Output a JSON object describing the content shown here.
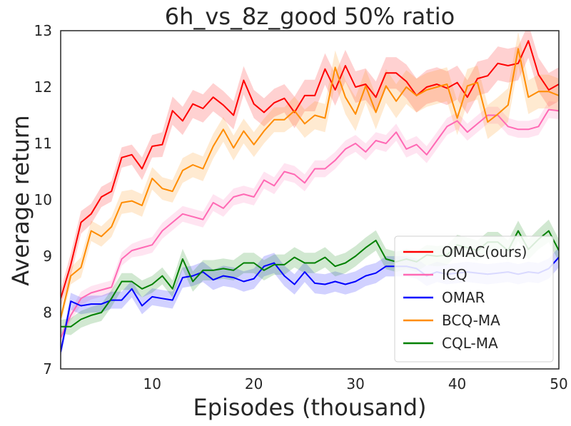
{
  "chart_data": {
    "type": "line",
    "title": "6h_vs_8z_good   50% ratio",
    "xlabel": "Episodes (thousand)",
    "ylabel": "Average return",
    "xlim": [
      1,
      50
    ],
    "ylim": [
      7,
      13
    ],
    "xticks": [
      10,
      20,
      30,
      40,
      50
    ],
    "yticks": [
      7,
      8,
      9,
      10,
      11,
      12,
      13
    ],
    "grid": false,
    "legend_position": "lower-right",
    "series": [
      {
        "name": "OMAC(ours)",
        "color": "#ff0000",
        "values": [
          8.25,
          8.85,
          9.6,
          9.75,
          10.05,
          10.15,
          10.75,
          10.8,
          10.55,
          10.95,
          10.98,
          11.58,
          11.4,
          11.7,
          11.62,
          11.82,
          11.68,
          11.5,
          12.12,
          11.7,
          11.55,
          11.72,
          11.8,
          11.55,
          11.85,
          11.85,
          12.32,
          11.95,
          12.38,
          12.0,
          12.05,
          11.82,
          12.25,
          12.25,
          12.1,
          11.85,
          12.0,
          12.05,
          11.98,
          12.08,
          11.82,
          12.15,
          12.2,
          12.42,
          12.38,
          12.42,
          12.82,
          12.22,
          11.95,
          12.05
        ],
        "band": [
          0.15,
          0.2,
          0.2,
          0.18,
          0.18,
          0.18,
          0.18,
          0.18,
          0.2,
          0.2,
          0.22,
          0.25,
          0.25,
          0.25,
          0.25,
          0.25,
          0.25,
          0.25,
          0.25,
          0.25,
          0.25,
          0.25,
          0.25,
          0.28,
          0.28,
          0.28,
          0.28,
          0.28,
          0.28,
          0.28,
          0.28,
          0.28,
          0.28,
          0.28,
          0.3,
          0.3,
          0.3,
          0.3,
          0.3,
          0.3,
          0.3,
          0.3,
          0.3,
          0.3,
          0.3,
          0.3,
          0.3,
          0.3,
          0.3,
          0.3
        ]
      },
      {
        "name": "ICQ",
        "color": "#ff69b4",
        "values": [
          7.55,
          7.95,
          8.25,
          8.35,
          8.4,
          8.45,
          8.95,
          9.1,
          9.15,
          9.2,
          9.45,
          9.6,
          9.75,
          9.7,
          9.65,
          9.95,
          9.85,
          10.05,
          10.1,
          10.05,
          10.35,
          10.25,
          10.5,
          10.45,
          10.3,
          10.55,
          10.55,
          10.7,
          10.9,
          11.0,
          10.85,
          11.05,
          11.0,
          11.2,
          10.9,
          10.98,
          10.8,
          11.05,
          11.3,
          11.4,
          11.2,
          11.35,
          11.5,
          11.5,
          11.3,
          11.25,
          11.25,
          11.3,
          11.6,
          11.58
        ],
        "band": [
          0.08,
          0.1,
          0.12,
          0.12,
          0.12,
          0.12,
          0.12,
          0.12,
          0.14,
          0.14,
          0.14,
          0.14,
          0.14,
          0.14,
          0.14,
          0.15,
          0.15,
          0.15,
          0.15,
          0.15,
          0.15,
          0.15,
          0.15,
          0.15,
          0.15,
          0.15,
          0.15,
          0.15,
          0.15,
          0.15,
          0.15,
          0.15,
          0.15,
          0.15,
          0.15,
          0.15,
          0.15,
          0.15,
          0.15,
          0.15,
          0.15,
          0.15,
          0.15,
          0.15,
          0.15,
          0.15,
          0.15,
          0.15,
          0.15,
          0.15
        ]
      },
      {
        "name": "OMAR",
        "color": "#0000ff",
        "values": [
          7.3,
          8.2,
          8.12,
          8.15,
          8.15,
          8.22,
          8.22,
          8.42,
          8.12,
          8.28,
          8.25,
          8.22,
          8.62,
          8.65,
          8.72,
          8.58,
          8.65,
          8.62,
          8.55,
          8.6,
          8.82,
          8.88,
          8.65,
          8.5,
          8.72,
          8.52,
          8.5,
          8.55,
          8.5,
          8.55,
          8.65,
          8.7,
          8.82,
          8.82,
          8.82,
          8.78,
          8.65,
          8.72,
          8.68,
          8.7,
          8.72,
          8.7,
          8.68,
          8.7,
          8.72,
          8.68,
          8.72,
          8.7,
          8.78,
          8.98
        ],
        "band": [
          0.1,
          0.15,
          0.15,
          0.15,
          0.15,
          0.15,
          0.15,
          0.15,
          0.15,
          0.15,
          0.15,
          0.15,
          0.18,
          0.18,
          0.18,
          0.18,
          0.18,
          0.18,
          0.18,
          0.18,
          0.18,
          0.18,
          0.18,
          0.18,
          0.18,
          0.18,
          0.18,
          0.18,
          0.18,
          0.18,
          0.18,
          0.18,
          0.18,
          0.18,
          0.18,
          0.18,
          0.18,
          0.18,
          0.18,
          0.18,
          0.18,
          0.18,
          0.18,
          0.18,
          0.18,
          0.18,
          0.18,
          0.18,
          0.18,
          0.18
        ]
      },
      {
        "name": "BCQ-MA",
        "color": "#ff8c00",
        "values": [
          7.9,
          8.65,
          8.8,
          9.45,
          9.35,
          9.52,
          9.95,
          9.98,
          9.9,
          10.38,
          10.2,
          10.15,
          10.52,
          10.62,
          10.55,
          10.95,
          11.25,
          10.92,
          11.22,
          10.98,
          11.22,
          11.42,
          11.42,
          11.58,
          11.35,
          11.5,
          11.45,
          12.35,
          11.82,
          11.52,
          12.02,
          11.55,
          12.02,
          11.75,
          12.0,
          11.85,
          11.95,
          12.0,
          12.05,
          11.45,
          12.02,
          12.08,
          11.38,
          11.52,
          11.68,
          12.68,
          11.82,
          11.92,
          11.92,
          11.85
        ],
        "band": [
          0.1,
          0.15,
          0.18,
          0.18,
          0.18,
          0.18,
          0.2,
          0.2,
          0.2,
          0.2,
          0.2,
          0.2,
          0.22,
          0.22,
          0.22,
          0.22,
          0.22,
          0.22,
          0.22,
          0.22,
          0.22,
          0.22,
          0.22,
          0.25,
          0.25,
          0.25,
          0.25,
          0.3,
          0.3,
          0.3,
          0.3,
          0.3,
          0.3,
          0.3,
          0.3,
          0.3,
          0.3,
          0.3,
          0.3,
          0.3,
          0.3,
          0.3,
          0.3,
          0.3,
          0.3,
          0.3,
          0.3,
          0.3,
          0.3,
          0.3
        ]
      },
      {
        "name": "CQL-MA",
        "color": "#008000",
        "values": [
          7.75,
          7.75,
          7.88,
          7.95,
          8.0,
          8.25,
          8.55,
          8.55,
          8.42,
          8.5,
          8.65,
          8.42,
          8.95,
          8.55,
          8.75,
          8.75,
          8.78,
          8.75,
          8.88,
          8.88,
          8.75,
          8.85,
          8.85,
          8.98,
          8.88,
          8.88,
          8.98,
          8.82,
          8.88,
          9.0,
          9.15,
          9.28,
          8.95,
          8.9,
          8.95,
          8.9,
          9.02,
          9.0,
          9.02,
          9.2,
          9.15,
          9.1,
          9.25,
          9.25,
          9.1,
          9.45,
          9.12,
          9.3,
          9.45,
          9.1
        ],
        "band": [
          0.12,
          0.15,
          0.15,
          0.15,
          0.15,
          0.15,
          0.15,
          0.15,
          0.15,
          0.15,
          0.15,
          0.15,
          0.18,
          0.18,
          0.18,
          0.18,
          0.18,
          0.18,
          0.18,
          0.18,
          0.18,
          0.18,
          0.18,
          0.18,
          0.18,
          0.18,
          0.18,
          0.18,
          0.18,
          0.18,
          0.18,
          0.18,
          0.18,
          0.18,
          0.18,
          0.18,
          0.18,
          0.18,
          0.18,
          0.18,
          0.18,
          0.18,
          0.18,
          0.18,
          0.18,
          0.18,
          0.18,
          0.18,
          0.2,
          0.2
        ]
      }
    ]
  }
}
